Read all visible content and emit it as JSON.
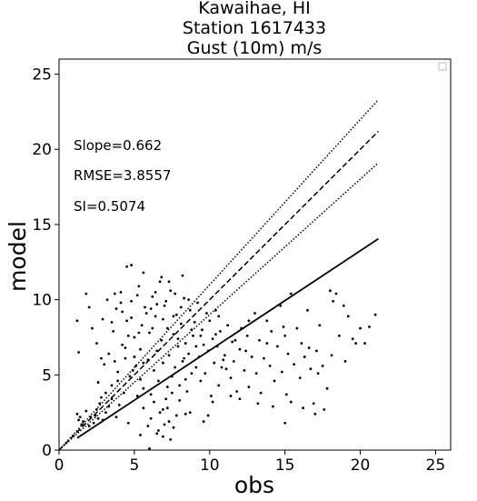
{
  "chart_data": {
    "type": "scatter",
    "title_lines": [
      "Kawaihae, HI",
      "Station 1617433",
      "Gust (10m) m/s"
    ],
    "xlabel": "obs",
    "ylabel": "model",
    "xlim": [
      0,
      26
    ],
    "ylim": [
      0,
      26
    ],
    "xticks": [
      0,
      5,
      10,
      15,
      20,
      25
    ],
    "yticks": [
      0,
      5,
      10,
      15,
      20,
      25
    ],
    "grid": false,
    "legend": "top-right, empty",
    "annotations": [
      "Slope=0.662",
      "RMSE=3.8557",
      "SI=0.5074"
    ],
    "lines": [
      {
        "style": "dashed",
        "points": [
          [
            0,
            0
          ],
          [
            21.2,
            21.2
          ]
        ]
      },
      {
        "style": "dotted",
        "points": [
          [
            0,
            0
          ],
          [
            21.2,
            23.3
          ]
        ]
      },
      {
        "style": "dotted",
        "points": [
          [
            0,
            0
          ],
          [
            21.2,
            19.1
          ]
        ]
      },
      {
        "style": "solid",
        "points": [
          [
            1.2,
            0.8
          ],
          [
            21.2,
            14.05
          ]
        ]
      }
    ],
    "points": [
      [
        1.2,
        2.4
      ],
      [
        1.4,
        2.2
      ],
      [
        1.6,
        1.9
      ],
      [
        1.8,
        2.6
      ],
      [
        2.1,
        2.2
      ],
      [
        2.3,
        1.8
      ],
      [
        2.5,
        2.7
      ],
      [
        2.7,
        3.1
      ],
      [
        2.9,
        2.0
      ],
      [
        3.1,
        2.5
      ],
      [
        3.3,
        2.9
      ],
      [
        1.5,
        1.7
      ],
      [
        2.0,
        1.6
      ],
      [
        2.6,
        2.1
      ],
      [
        3.5,
        3.4
      ],
      [
        3.8,
        2.2
      ],
      [
        4.0,
        3.0
      ],
      [
        4.3,
        3.8
      ],
      [
        1.3,
        2.0
      ],
      [
        2.4,
        2.3
      ],
      [
        1.2,
        8.6
      ],
      [
        1.3,
        6.5
      ],
      [
        1.8,
        10.4
      ],
      [
        2.0,
        9.5
      ],
      [
        2.2,
        8.1
      ],
      [
        2.5,
        7.1
      ],
      [
        2.6,
        4.5
      ],
      [
        2.8,
        6.1
      ],
      [
        2.9,
        8.7
      ],
      [
        3.0,
        5.7
      ],
      [
        3.2,
        10.0
      ],
      [
        3.3,
        6.4
      ],
      [
        3.5,
        4.3
      ],
      [
        3.6,
        7.9
      ],
      [
        3.8,
        9.4
      ],
      [
        3.9,
        5.2
      ],
      [
        4.1,
        10.5
      ],
      [
        4.2,
        7.0
      ],
      [
        4.4,
        6.1
      ],
      [
        4.5,
        8.6
      ],
      [
        4.7,
        4.9
      ],
      [
        4.8,
        9.9
      ],
      [
        5.0,
        7.5
      ],
      [
        5.1,
        5.6
      ],
      [
        5.3,
        10.9
      ],
      [
        5.4,
        6.7
      ],
      [
        5.5,
        8.3
      ],
      [
        5.6,
        4.1
      ],
      [
        5.8,
        9.1
      ],
      [
        5.9,
        6.0
      ],
      [
        6.0,
        7.8
      ],
      [
        6.1,
        3.7
      ],
      [
        6.2,
        10.2
      ],
      [
        6.3,
        5.3
      ],
      [
        6.4,
        8.9
      ],
      [
        6.5,
        6.6
      ],
      [
        6.6,
        4.6
      ],
      [
        6.7,
        11.2
      ],
      [
        6.8,
        7.3
      ],
      [
        6.9,
        5.8
      ],
      [
        7.0,
        9.6
      ],
      [
        7.1,
        3.4
      ],
      [
        7.2,
        8.1
      ],
      [
        7.3,
        6.3
      ],
      [
        7.4,
        10.6
      ],
      [
        7.5,
        4.9
      ],
      [
        7.6,
        7.7
      ],
      [
        7.7,
        5.5
      ],
      [
        7.8,
        9.0
      ],
      [
        7.9,
        6.9
      ],
      [
        8.0,
        4.3
      ],
      [
        8.1,
        8.4
      ],
      [
        8.2,
        5.9
      ],
      [
        8.3,
        10.1
      ],
      [
        8.4,
        7.1
      ],
      [
        8.5,
        3.9
      ],
      [
        8.6,
        6.4
      ],
      [
        8.7,
        9.3
      ],
      [
        8.8,
        5.1
      ],
      [
        8.9,
        7.6
      ],
      [
        4.5,
        12.2
      ],
      [
        4.8,
        12.3
      ],
      [
        5.6,
        11.8
      ],
      [
        6.8,
        11.5
      ],
      [
        7.3,
        11.2
      ],
      [
        8.2,
        11.6
      ],
      [
        6.4,
        10.5
      ],
      [
        3.7,
        10.4
      ],
      [
        5.2,
        10.3
      ],
      [
        4.1,
        9.8
      ],
      [
        3.5,
        8.5
      ],
      [
        4.6,
        7.6
      ],
      [
        5.7,
        9.5
      ],
      [
        6.2,
        8.1
      ],
      [
        7.1,
        9.9
      ],
      [
        7.7,
        10.4
      ],
      [
        8.6,
        10.0
      ],
      [
        4.9,
        5.3
      ],
      [
        5.0,
        6.2
      ],
      [
        5.4,
        4.7
      ],
      [
        5.2,
        3.6
      ],
      [
        5.6,
        2.8
      ],
      [
        5.9,
        1.6
      ],
      [
        6.1,
        2.1
      ],
      [
        6.3,
        3.2
      ],
      [
        6.5,
        1.1
      ],
      [
        6.7,
        2.5
      ],
      [
        6.9,
        0.9
      ],
      [
        7.0,
        1.7
      ],
      [
        7.2,
        2.8
      ],
      [
        7.4,
        0.7
      ],
      [
        7.6,
        1.5
      ],
      [
        7.8,
        2.3
      ],
      [
        8.0,
        3.3
      ],
      [
        6.6,
        1.3
      ],
      [
        5.4,
        1.0
      ],
      [
        4.6,
        1.8
      ],
      [
        7.3,
        1.9
      ],
      [
        6.0,
        0.1
      ],
      [
        8.4,
        2.4
      ],
      [
        9.0,
        8.5
      ],
      [
        9.1,
        5.5
      ],
      [
        9.2,
        9.8
      ],
      [
        9.3,
        6.2
      ],
      [
        9.4,
        4.6
      ],
      [
        9.5,
        8.0
      ],
      [
        9.6,
        7.0
      ],
      [
        9.7,
        5.1
      ],
      [
        9.8,
        9.1
      ],
      [
        9.9,
        6.6
      ],
      [
        10.0,
        8.6
      ],
      [
        10.1,
        3.6
      ],
      [
        10.2,
        7.4
      ],
      [
        10.3,
        5.8
      ],
      [
        10.4,
        9.3
      ],
      [
        10.5,
        6.9
      ],
      [
        10.6,
        4.3
      ],
      [
        10.7,
        7.9
      ],
      [
        10.8,
        5.5
      ],
      [
        11.0,
        6.3
      ],
      [
        11.2,
        8.3
      ],
      [
        11.4,
        4.8
      ],
      [
        11.5,
        7.2
      ],
      [
        11.6,
        5.9
      ],
      [
        11.8,
        3.9
      ],
      [
        12.0,
        6.7
      ],
      [
        12.1,
        8.1
      ],
      [
        12.3,
        5.3
      ],
      [
        12.5,
        7.6
      ],
      [
        12.6,
        4.2
      ],
      [
        12.8,
        6.2
      ],
      [
        13.0,
        9.1
      ],
      [
        13.1,
        5.1
      ],
      [
        13.3,
        7.3
      ],
      [
        13.4,
        3.8
      ],
      [
        13.6,
        6.1
      ],
      [
        13.8,
        8.6
      ],
      [
        14.0,
        5.6
      ],
      [
        14.1,
        7.9
      ],
      [
        14.3,
        4.6
      ],
      [
        14.5,
        6.9
      ],
      [
        14.7,
        9.6
      ],
      [
        14.8,
        5.2
      ],
      [
        15.0,
        7.6
      ],
      [
        15.1,
        3.7
      ],
      [
        15.2,
        6.4
      ],
      [
        15.4,
        10.4
      ],
      [
        15.6,
        5.7
      ],
      [
        15.8,
        8.1
      ],
      [
        16.0,
        4.8
      ],
      [
        16.1,
        7.1
      ],
      [
        16.3,
        6.2
      ],
      [
        16.5,
        9.3
      ],
      [
        16.7,
        5.4
      ],
      [
        16.9,
        3.1
      ],
      [
        17.1,
        6.6
      ],
      [
        17.3,
        8.3
      ],
      [
        17.5,
        5.6
      ],
      [
        17.8,
        4.1
      ],
      [
        18.0,
        10.6
      ],
      [
        18.2,
        9.9
      ],
      [
        18.4,
        10.4
      ],
      [
        18.6,
        7.6
      ],
      [
        18.9,
        9.6
      ],
      [
        19.2,
        8.9
      ],
      [
        19.5,
        7.4
      ],
      [
        19.7,
        7.1
      ],
      [
        20.0,
        8.1
      ],
      [
        20.3,
        7.1
      ],
      [
        20.6,
        8.2
      ],
      [
        21.0,
        9.0
      ],
      [
        15.0,
        1.8
      ],
      [
        15.4,
        3.2
      ],
      [
        16.2,
        2.8
      ],
      [
        17.0,
        2.4
      ],
      [
        17.6,
        2.7
      ],
      [
        14.2,
        2.9
      ],
      [
        13.2,
        3.1
      ],
      [
        12.0,
        3.4
      ],
      [
        9.9,
        2.3
      ],
      [
        11.4,
        3.6
      ],
      [
        10.2,
        3.2
      ],
      [
        8.7,
        2.5
      ],
      [
        9.6,
        1.9
      ],
      [
        6.9,
        2.7
      ],
      [
        7.5,
        3.8
      ],
      [
        7.2,
        4.2
      ],
      [
        8.4,
        4.7
      ],
      [
        5.6,
        5.8
      ],
      [
        5.3,
        7.8
      ],
      [
        4.8,
        8.8
      ],
      [
        4.2,
        9.2
      ],
      [
        4.4,
        6.8
      ],
      [
        3.7,
        5.9
      ],
      [
        3.1,
        3.8
      ],
      [
        2.8,
        3.5
      ],
      [
        3.9,
        4.6
      ],
      [
        6.1,
        9.4
      ],
      [
        6.5,
        9.7
      ],
      [
        6.9,
        8.7
      ],
      [
        7.6,
        8.9
      ],
      [
        8.1,
        9.5
      ],
      [
        8.8,
        8.0
      ],
      [
        9.4,
        7.6
      ],
      [
        10.4,
        7.7
      ],
      [
        10.6,
        8.9
      ],
      [
        11.7,
        7.3
      ],
      [
        12.6,
        8.6
      ],
      [
        13.8,
        7.1
      ],
      [
        14.9,
        8.2
      ],
      [
        16.6,
        6.8
      ],
      [
        17.2,
        5.1
      ],
      [
        18.1,
        6.3
      ],
      [
        19.0,
        5.9
      ],
      [
        12.4,
        6.6
      ],
      [
        11.1,
        5.4
      ],
      [
        10.9,
        6.0
      ],
      [
        9.1,
        6.9
      ],
      [
        8.3,
        6.1
      ],
      [
        7.9,
        7.4
      ]
    ]
  }
}
